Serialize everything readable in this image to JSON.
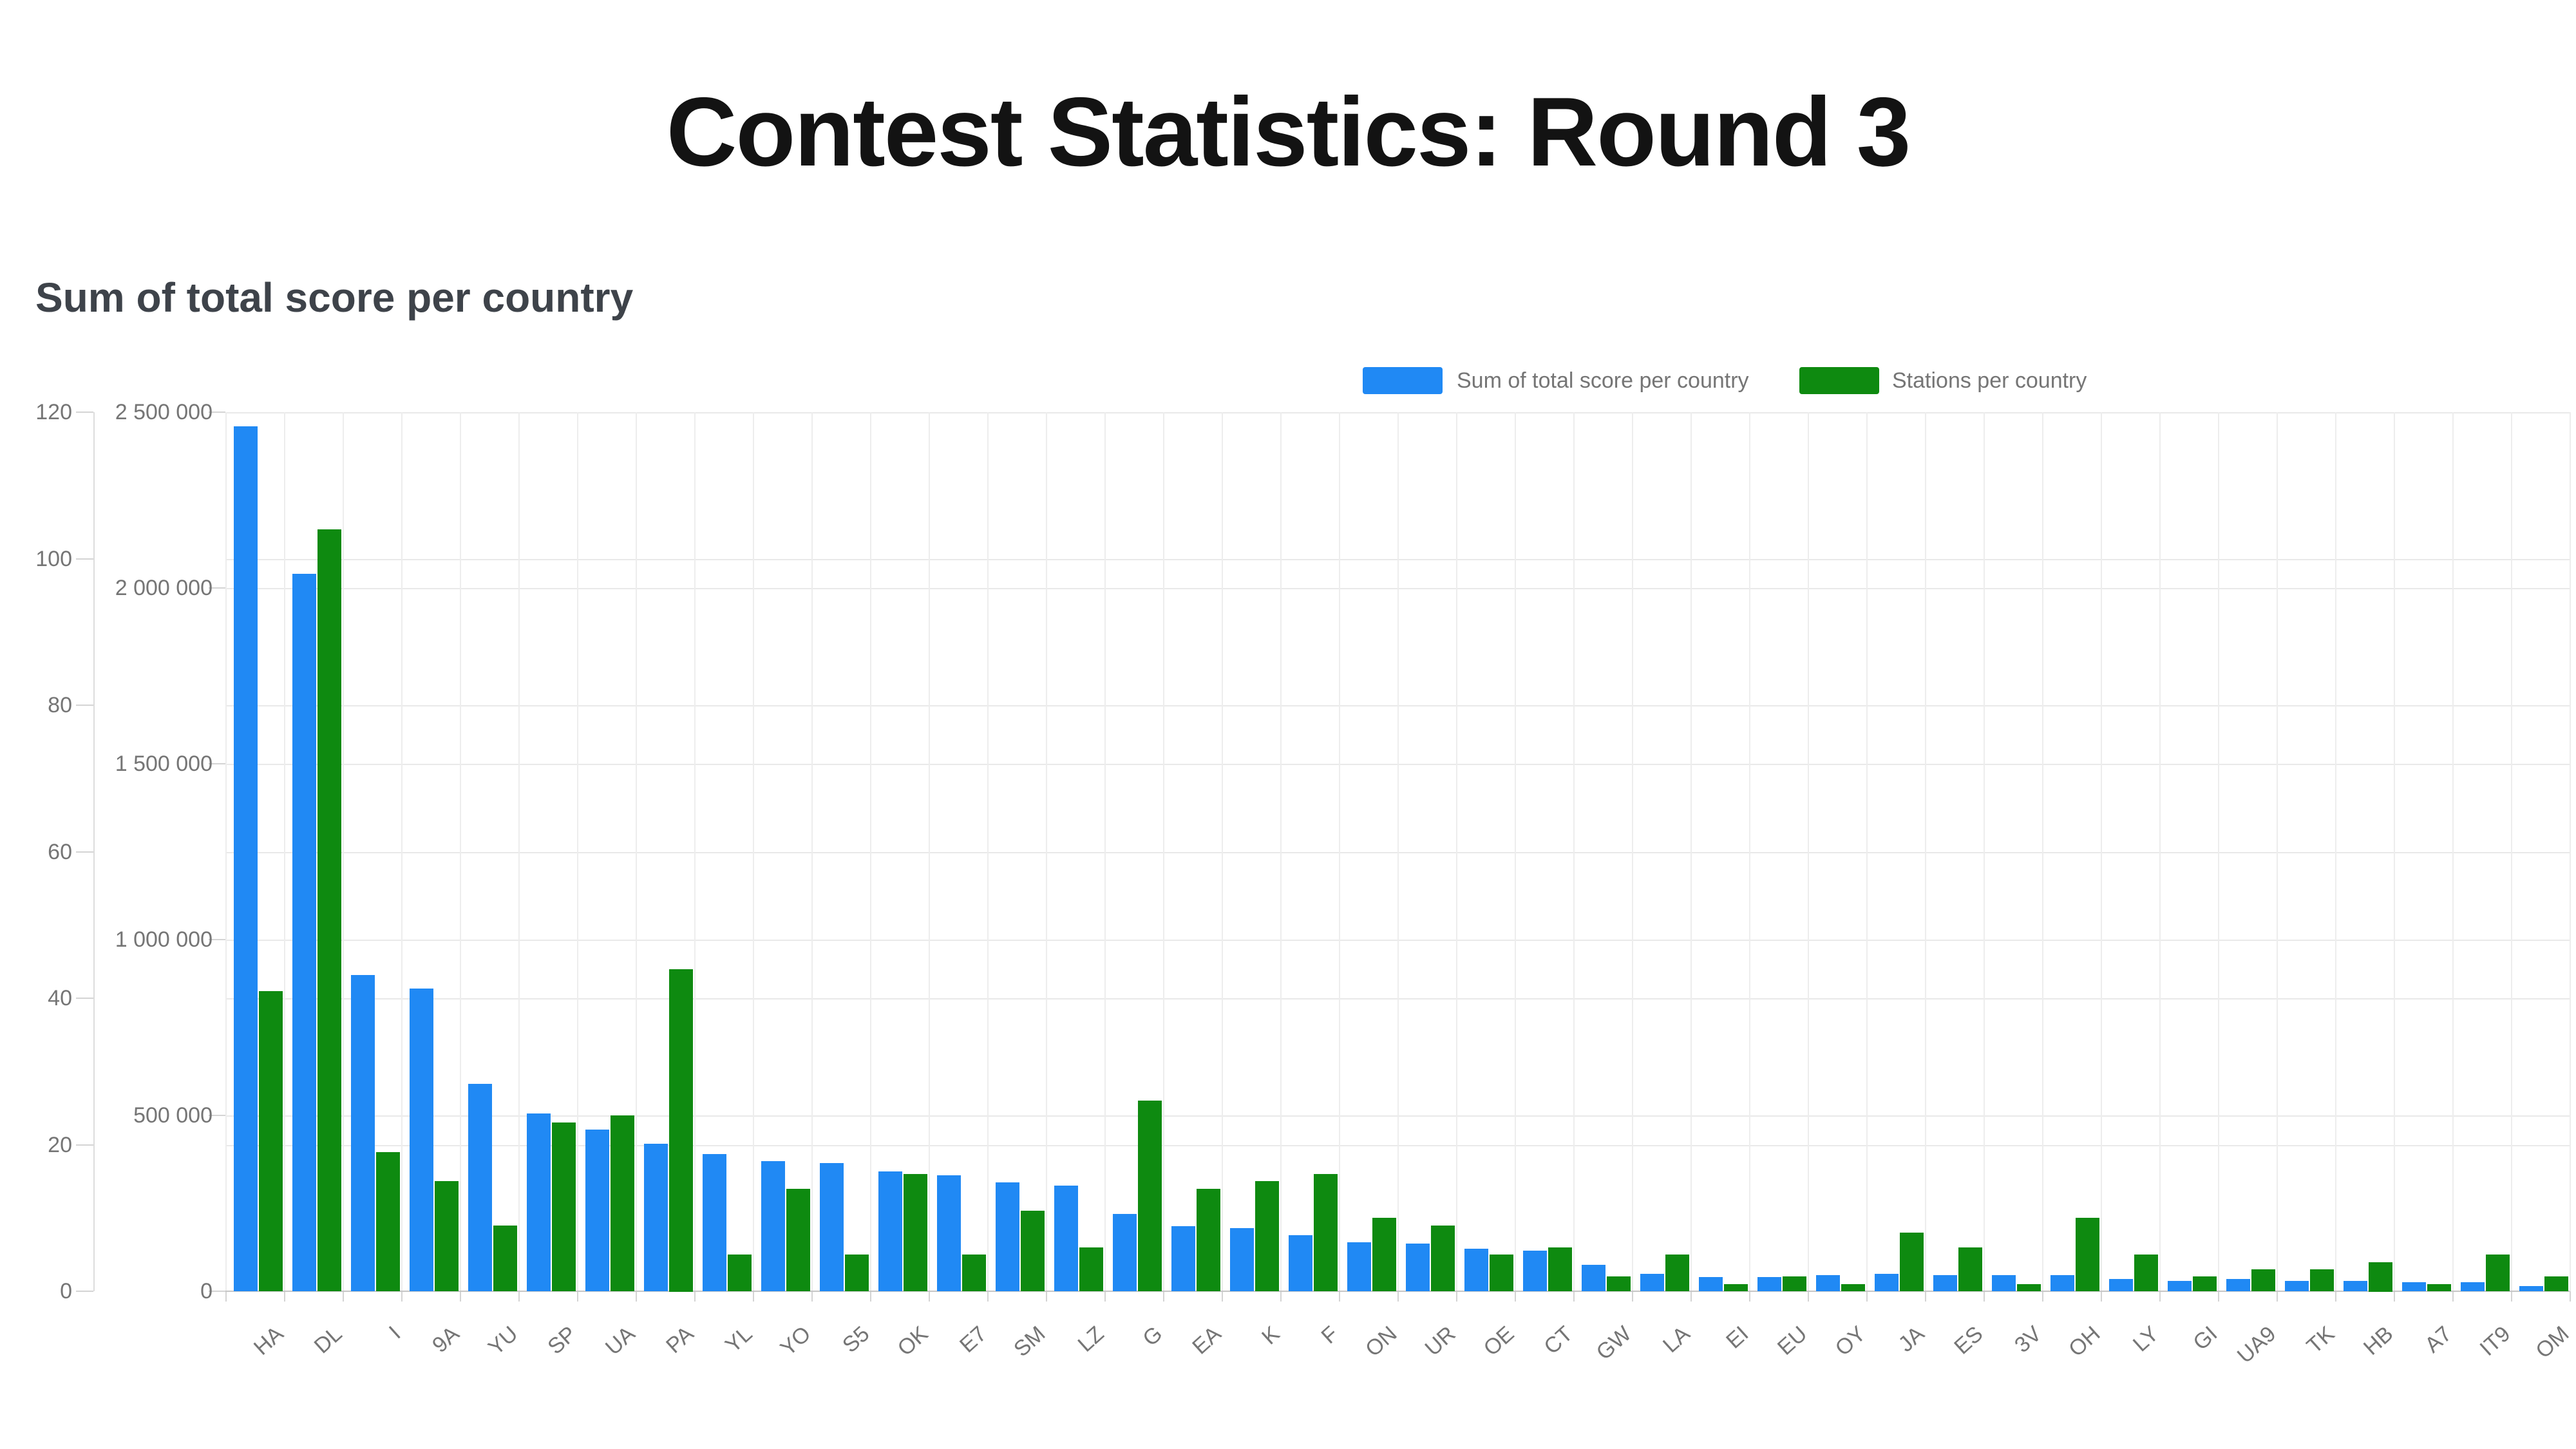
{
  "page": {
    "title": "Contest Statistics: Round 3"
  },
  "chart_data": {
    "type": "bar",
    "title": "Sum of total score per country",
    "grid": true,
    "legend_position": "top-right",
    "categories": [
      "HA",
      "DL",
      "I",
      "9A",
      "YU",
      "SP",
      "UA",
      "PA",
      "YL",
      "YO",
      "S5",
      "OK",
      "E7",
      "SM",
      "LZ",
      "G",
      "EA",
      "K",
      "F",
      "ON",
      "UR",
      "OE",
      "CT",
      "GW",
      "LA",
      "EI",
      "EU",
      "OY",
      "JA",
      "ES",
      "3V",
      "OH",
      "LY",
      "GI",
      "UA9",
      "TK",
      "HB",
      "A7",
      "IT9",
      "OM"
    ],
    "series": [
      {
        "name": "Sum of total score per country",
        "axis": "score",
        "color": "#2089f4",
        "values": [
          2460000,
          2040000,
          900000,
          860000,
          590000,
          505000,
          460000,
          420000,
          390000,
          370000,
          365000,
          340000,
          330000,
          310000,
          300000,
          220000,
          185000,
          180000,
          160000,
          140000,
          135000,
          120000,
          115000,
          75000,
          50000,
          40000,
          40000,
          45000,
          50000,
          45000,
          45000,
          45000,
          35000,
          30000,
          35000,
          30000,
          30000,
          25000,
          25000,
          15000
        ]
      },
      {
        "name": "Stations per country",
        "axis": "stations",
        "color": "#0e8a10",
        "values": [
          41,
          104,
          19,
          15,
          9,
          23,
          24,
          44,
          5,
          14,
          5,
          16,
          5,
          11,
          6,
          26,
          14,
          15,
          16,
          10,
          9,
          5,
          6,
          2,
          5,
          1,
          2,
          1,
          8,
          6,
          1,
          10,
          5,
          2,
          3,
          3,
          4,
          1,
          5,
          2
        ]
      }
    ],
    "axes": {
      "stations": {
        "range": [
          0,
          120
        ],
        "ticks": [
          0,
          20,
          40,
          60,
          80,
          100,
          120
        ],
        "tick_labels": [
          "0",
          "20",
          "40",
          "60",
          "80",
          "100",
          "120"
        ]
      },
      "score": {
        "range": [
          0,
          2500000
        ],
        "ticks": [
          0,
          500000,
          1000000,
          1500000,
          2000000,
          2500000
        ],
        "tick_labels": [
          "0",
          "500 000",
          "1 000 000",
          "1 500 000",
          "2 000 000",
          "2 500 000"
        ]
      }
    }
  },
  "colors": {
    "score_bar": "#2089f4",
    "stations_bar": "#0e8a10",
    "grid": "#e9e9e9",
    "axis_text": "#757575",
    "title_text": "#131313",
    "chart_title_text": "#3e434a",
    "background": "#ffffff"
  }
}
